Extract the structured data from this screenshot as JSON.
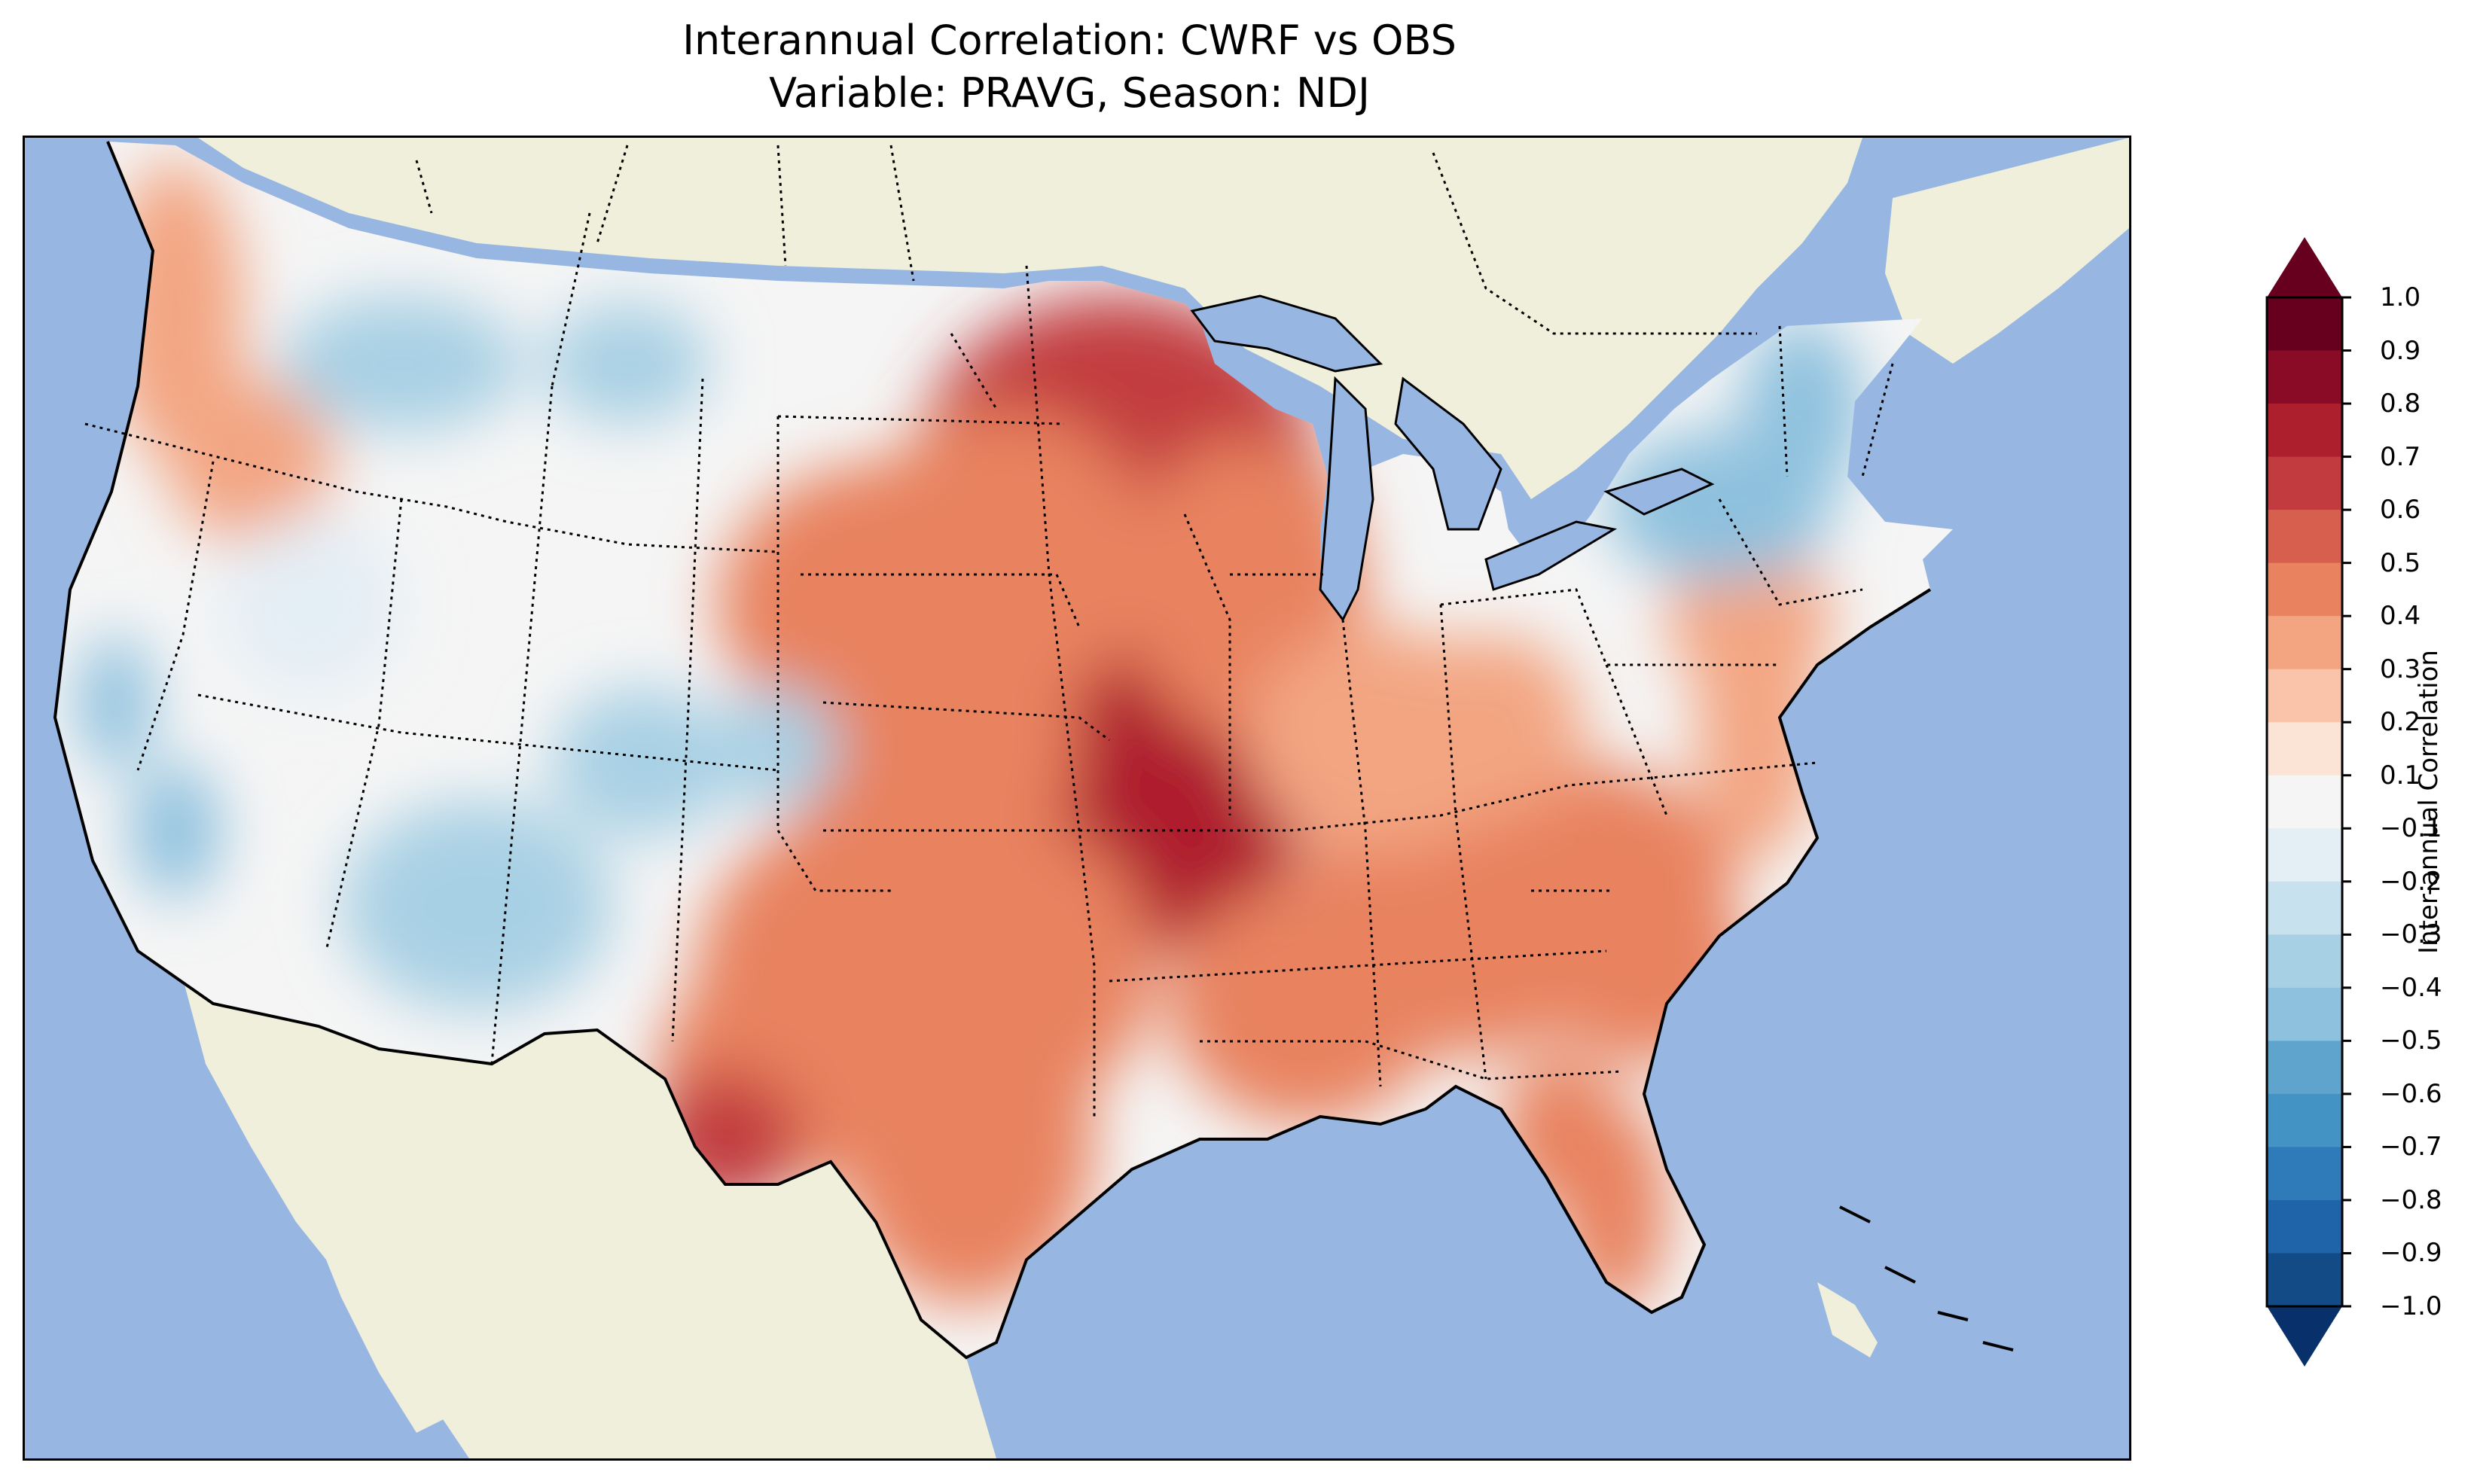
{
  "title": {
    "line1": "Interannual Correlation: CWRF vs OBS",
    "line2": "Variable: PRAVG, Season: NDJ"
  },
  "colorbar": {
    "label": "Inter-annual Correlation",
    "ticks": [
      "1.0",
      "0.9",
      "0.8",
      "0.7",
      "0.6",
      "0.5",
      "0.4",
      "0.3",
      "0.2",
      "0.1",
      "−0.1",
      "−0.2",
      "−0.3",
      "−0.4",
      "−0.5",
      "−0.6",
      "−0.7",
      "−0.8",
      "−0.9",
      "−1.0"
    ],
    "levels": [
      -1.0,
      -0.9,
      -0.8,
      -0.7,
      -0.6,
      -0.5,
      -0.4,
      -0.3,
      -0.2,
      -0.1,
      0.1,
      0.2,
      0.3,
      0.4,
      0.5,
      0.6,
      0.7,
      0.8,
      0.9,
      1.0
    ],
    "colors": [
      "#08306b",
      "#134b87",
      "#1f63a8",
      "#2f7ab9",
      "#4394c4",
      "#5fa4cd",
      "#8ec1de",
      "#a8d0e4",
      "#c8e1ef",
      "#e4eef5",
      "#f5f5f5",
      "#fbe3d6",
      "#f9c4a9",
      "#f3a582",
      "#e8825f",
      "#d6604d",
      "#c23c3f",
      "#ae1f2e",
      "#8a0b25",
      "#67001f"
    ],
    "extend": "both"
  },
  "map": {
    "projection": "Lambert Conformal",
    "ocean_color": "#97b6e1",
    "land_color": "#efefdb",
    "regions": [
      {
        "id": "upper-midwest-core",
        "value": 0.75
      },
      {
        "id": "missouri-core",
        "value": 0.85
      },
      {
        "id": "central-plains",
        "value": 0.55
      },
      {
        "id": "southern-plains-texas",
        "value": 0.55
      },
      {
        "id": "west-texas-core",
        "value": 0.75
      },
      {
        "id": "southeast",
        "value": 0.55
      },
      {
        "id": "florida",
        "value": 0.55
      },
      {
        "id": "ohio-valley",
        "value": 0.45
      },
      {
        "id": "mid-atlantic-coast",
        "value": 0.45
      },
      {
        "id": "pacific-northwest-coast",
        "value": 0.4
      },
      {
        "id": "northern-rockies",
        "value": -0.3
      },
      {
        "id": "colorado-plateau",
        "value": -0.3
      },
      {
        "id": "arizona",
        "value": -0.25
      },
      {
        "id": "southern-california",
        "value": -0.4
      },
      {
        "id": "new-york-northeast",
        "value": -0.4
      },
      {
        "id": "great-basin",
        "value": 0.05
      }
    ]
  }
}
